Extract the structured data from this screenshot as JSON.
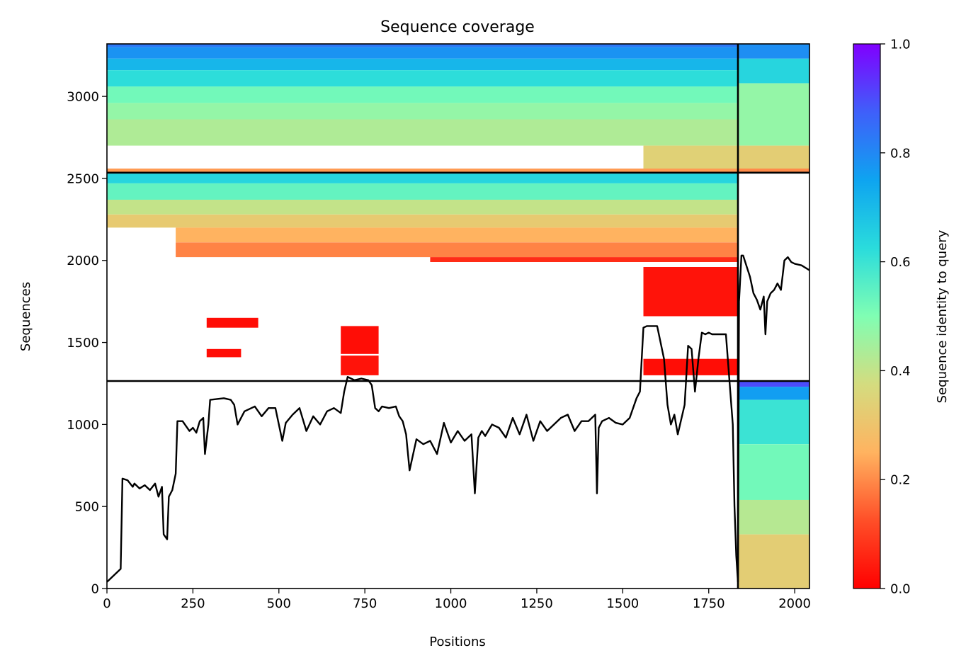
{
  "chart_data": {
    "type": "heatmap",
    "title": "Sequence coverage",
    "xlabel": "Positions",
    "ylabel": "Sequences",
    "xlim": [
      0,
      2043
    ],
    "ylim": [
      0,
      3320
    ],
    "xticks": [
      0,
      250,
      500,
      750,
      1000,
      1250,
      1500,
      1750,
      2000
    ],
    "yticks": [
      0,
      500,
      1000,
      1500,
      2000,
      2500,
      3000
    ],
    "colorbar": {
      "label": "Sequence identity to query",
      "min": 0.0,
      "max": 1.0,
      "ticks": [
        "0.0",
        "0.2",
        "0.4",
        "0.6",
        "0.8",
        "1.0"
      ],
      "colormap": "rainbow"
    },
    "chain_boundaries": {
      "x": [
        1835
      ],
      "y": [
        1265,
        2535
      ]
    },
    "coverage_line": {
      "name": "coverage",
      "x": [
        0,
        20,
        40,
        45,
        60,
        75,
        80,
        95,
        110,
        125,
        140,
        150,
        160,
        165,
        175,
        180,
        190,
        200,
        205,
        220,
        240,
        250,
        260,
        270,
        280,
        285,
        295,
        300,
        340,
        360,
        370,
        380,
        400,
        430,
        450,
        470,
        490,
        510,
        520,
        540,
        560,
        580,
        600,
        620,
        640,
        660,
        680,
        690,
        700,
        720,
        740,
        760,
        770,
        780,
        790,
        800,
        820,
        840,
        850,
        860,
        870,
        880,
        900,
        920,
        940,
        960,
        980,
        1000,
        1020,
        1040,
        1060,
        1070,
        1080,
        1090,
        1100,
        1120,
        1140,
        1160,
        1180,
        1200,
        1220,
        1240,
        1260,
        1280,
        1300,
        1320,
        1340,
        1360,
        1380,
        1400,
        1420,
        1425,
        1430,
        1440,
        1460,
        1480,
        1500,
        1520,
        1540,
        1550,
        1560,
        1570,
        1600,
        1620,
        1630,
        1640,
        1650,
        1660,
        1680,
        1690,
        1700,
        1710,
        1720,
        1730,
        1740,
        1750,
        1760,
        1800,
        1820,
        1825,
        1830,
        1835,
        1838,
        1840,
        1845,
        1850,
        1870,
        1880,
        1890,
        1900,
        1910,
        1915,
        1920,
        1930,
        1940,
        1950,
        1960,
        1970,
        1980,
        1990,
        2000,
        2020,
        2043
      ],
      "y": [
        40,
        80,
        120,
        670,
        660,
        620,
        640,
        610,
        630,
        600,
        640,
        560,
        620,
        330,
        300,
        560,
        600,
        700,
        1020,
        1020,
        960,
        980,
        950,
        1020,
        1040,
        820,
        1000,
        1150,
        1160,
        1150,
        1120,
        1000,
        1080,
        1110,
        1050,
        1100,
        1100,
        900,
        1010,
        1060,
        1100,
        960,
        1050,
        1000,
        1080,
        1100,
        1070,
        1200,
        1290,
        1270,
        1280,
        1270,
        1240,
        1100,
        1080,
        1110,
        1100,
        1110,
        1050,
        1020,
        940,
        720,
        910,
        880,
        900,
        820,
        1010,
        890,
        960,
        900,
        940,
        580,
        920,
        960,
        930,
        1000,
        980,
        920,
        1040,
        940,
        1060,
        900,
        1020,
        960,
        1000,
        1040,
        1060,
        960,
        1020,
        1020,
        1060,
        580,
        980,
        1020,
        1040,
        1010,
        1000,
        1040,
        1160,
        1200,
        1590,
        1600,
        1600,
        1400,
        1120,
        1000,
        1060,
        940,
        1120,
        1480,
        1460,
        1200,
        1400,
        1560,
        1550,
        1560,
        1550,
        1550,
        1000,
        500,
        200,
        40,
        1750,
        1820,
        2030,
        2030,
        1900,
        1800,
        1760,
        1700,
        1780,
        1550,
        1750,
        1800,
        1820,
        1860,
        1820,
        2000,
        2020,
        1990,
        1980,
        1970,
        1940
      ]
    },
    "blocks": [
      {
        "x": [
          0,
          1835
        ],
        "y": [
          3300,
          3320
        ],
        "value": 0.83
      },
      {
        "x": [
          0,
          1835
        ],
        "y": [
          3230,
          3300
        ],
        "value": 0.78
      },
      {
        "x": [
          0,
          1835
        ],
        "y": [
          3160,
          3230
        ],
        "value": 0.71
      },
      {
        "x": [
          0,
          1835
        ],
        "y": [
          3060,
          3160
        ],
        "value": 0.62
      },
      {
        "x": [
          0,
          1835
        ],
        "y": [
          2960,
          3060
        ],
        "value": 0.52
      },
      {
        "x": [
          0,
          1835
        ],
        "y": [
          2860,
          2960
        ],
        "value": 0.47
      },
      {
        "x": [
          0,
          1835
        ],
        "y": [
          2700,
          2860
        ],
        "value": 0.43
      },
      {
        "x": [
          1560,
          1835
        ],
        "y": [
          2560,
          2700
        ],
        "value": 0.34
      },
      {
        "x": [
          0,
          1835
        ],
        "y": [
          2535,
          2560
        ],
        "value": 0.22
      },
      {
        "x": [
          1835,
          2043
        ],
        "y": [
          3230,
          3320
        ],
        "value": 0.79
      },
      {
        "x": [
          1835,
          2043
        ],
        "y": [
          3080,
          3230
        ],
        "value": 0.64
      },
      {
        "x": [
          1835,
          2043
        ],
        "y": [
          2700,
          3080
        ],
        "value": 0.47
      },
      {
        "x": [
          1835,
          2043
        ],
        "y": [
          2560,
          2700
        ],
        "value": 0.33
      },
      {
        "x": [
          1835,
          2043
        ],
        "y": [
          2535,
          2560
        ],
        "value": 0.2
      },
      {
        "x": [
          0,
          1835
        ],
        "y": [
          2470,
          2535
        ],
        "value": 0.64
      },
      {
        "x": [
          0,
          1835
        ],
        "y": [
          2370,
          2470
        ],
        "value": 0.54
      },
      {
        "x": [
          0,
          1835
        ],
        "y": [
          2280,
          2370
        ],
        "value": 0.4
      },
      {
        "x": [
          0,
          1835
        ],
        "y": [
          2200,
          2280
        ],
        "value": 0.32
      },
      {
        "x": [
          200,
          1835
        ],
        "y": [
          2110,
          2200
        ],
        "value": 0.25
      },
      {
        "x": [
          200,
          1835
        ],
        "y": [
          2020,
          2110
        ],
        "value": 0.19
      },
      {
        "x": [
          940,
          1835
        ],
        "y": [
          1990,
          2020
        ],
        "value": 0.07
      },
      {
        "x": [
          1560,
          1835
        ],
        "y": [
          1660,
          1960
        ],
        "value": 0.03
      },
      {
        "x": [
          1560,
          1835
        ],
        "y": [
          1300,
          1400
        ],
        "value": 0.02
      },
      {
        "x": [
          290,
          440
        ],
        "y": [
          1590,
          1650
        ],
        "value": 0.02
      },
      {
        "x": [
          290,
          390
        ],
        "y": [
          1410,
          1460
        ],
        "value": 0.02
      },
      {
        "x": [
          680,
          790
        ],
        "y": [
          1430,
          1600
        ],
        "value": 0.02
      },
      {
        "x": [
          680,
          790
        ],
        "y": [
          1300,
          1420
        ],
        "value": 0.03
      },
      {
        "x": [
          1835,
          2043
        ],
        "y": [
          1230,
          1265
        ],
        "value": 0.9
      },
      {
        "x": [
          1835,
          2043
        ],
        "y": [
          1150,
          1230
        ],
        "value": 0.76
      },
      {
        "x": [
          1835,
          2043
        ],
        "y": [
          880,
          1150
        ],
        "value": 0.6
      },
      {
        "x": [
          1835,
          2043
        ],
        "y": [
          540,
          880
        ],
        "value": 0.52
      },
      {
        "x": [
          1835,
          2043
        ],
        "y": [
          330,
          540
        ],
        "value": 0.42
      },
      {
        "x": [
          1835,
          2043
        ],
        "y": [
          0,
          330
        ],
        "value": 0.33
      }
    ]
  }
}
